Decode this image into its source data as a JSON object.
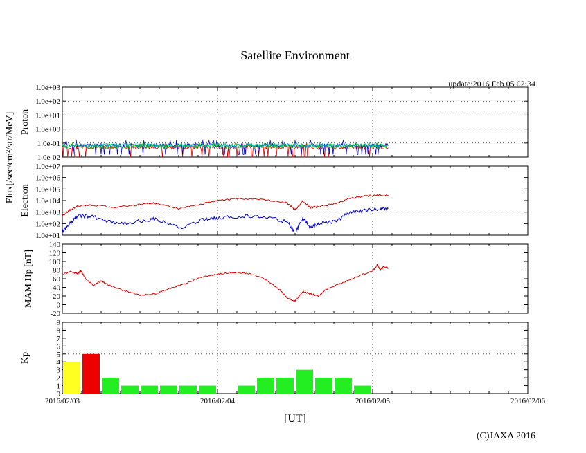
{
  "title": "Satellite Environment",
  "update_text": "update:2016 Feb 05 02:34",
  "copyright": "(C)JAXA 2016",
  "x_axis_label": "[UT]",
  "flux_label": "Flux[/sec/cm²/str/MeV]",
  "x_ticks": [
    "2016/02/03",
    "2016/02/04",
    "2016/02/05",
    "2016/02/06"
  ],
  "colors": {
    "red": "#dd0000",
    "blue": "#0000cc",
    "green": "#00cc00",
    "cyan": "#00aaaa",
    "kp_green": "#22ee22",
    "kp_yellow": "#ffff22",
    "kp_red": "#ee0000"
  },
  "chart_data": [
    {
      "type": "line",
      "name": "proton",
      "ylabel": "Proton",
      "yscale": "log",
      "ylim": [
        0.01,
        1000
      ],
      "y_ticks": [
        "1.0e-02",
        "1.0e-01",
        "1.0e+00",
        "1.0e+01",
        "1.0e+02",
        "1.0e+03"
      ],
      "x_unit": "days since 2016/02/03 00:00 UT",
      "xlim": [
        0,
        3
      ],
      "data_end_x": 2.1,
      "series": [
        {
          "color": "#dd0000",
          "level": 0.05,
          "low": 0.01,
          "high": 0.1
        },
        {
          "color": "#0000cc",
          "level": 0.07,
          "low": 0.015,
          "high": 0.15
        },
        {
          "color": "#00cc00",
          "level": 0.065,
          "low": 0.04,
          "high": 0.1
        },
        {
          "color": "#00aaaa",
          "level": 0.07,
          "low": 0.05,
          "high": 0.1
        }
      ]
    },
    {
      "type": "line",
      "name": "electron",
      "ylabel": "Electron",
      "yscale": "log",
      "ylim": [
        10,
        10000000
      ],
      "y_ticks": [
        "1.0e+01",
        "1.0e+02",
        "1.0e+03",
        "1.0e+04",
        "1.0e+05",
        "1.0e+06",
        "1.0e+07"
      ],
      "xlim": [
        0,
        3
      ],
      "series": [
        {
          "color": "#dd0000",
          "x": [
            0,
            0.05,
            0.1,
            0.2,
            0.35,
            0.5,
            0.6,
            0.75,
            0.9,
            1.0,
            1.15,
            1.3,
            1.45,
            1.5,
            1.55,
            1.6,
            1.65,
            1.75,
            1.85,
            1.95,
            2.05,
            2.1
          ],
          "y": [
            500,
            1500,
            3500,
            4000,
            2500,
            4500,
            6000,
            2000,
            5000,
            10000,
            15000,
            12000,
            6000,
            1500,
            9000,
            2500,
            3000,
            5000,
            15000,
            25000,
            30000,
            30000
          ]
        },
        {
          "color": "#0000cc",
          "x": [
            0,
            0.05,
            0.1,
            0.2,
            0.35,
            0.5,
            0.6,
            0.75,
            0.9,
            1.0,
            1.15,
            1.3,
            1.45,
            1.5,
            1.55,
            1.6,
            1.65,
            1.75,
            1.85,
            1.95,
            2.05,
            2.1
          ],
          "y": [
            20,
            100,
            500,
            400,
            100,
            150,
            250,
            40,
            200,
            300,
            450,
            400,
            150,
            15,
            300,
            50,
            100,
            150,
            800,
            1500,
            2000,
            2000
          ]
        }
      ]
    },
    {
      "type": "line",
      "name": "mam_hp",
      "ylabel": "MAM Hp [nT]",
      "ylim": [
        -20,
        140
      ],
      "y_ticks": [
        "-20",
        "0",
        "20",
        "40",
        "60",
        "80",
        "100",
        "120",
        "140"
      ],
      "xlim": [
        0,
        3
      ],
      "series": [
        {
          "color": "#dd0000",
          "x": [
            0,
            0.05,
            0.1,
            0.12,
            0.15,
            0.2,
            0.25,
            0.3,
            0.4,
            0.5,
            0.6,
            0.7,
            0.8,
            0.9,
            1.0,
            1.1,
            1.2,
            1.3,
            1.4,
            1.45,
            1.5,
            1.55,
            1.6,
            1.65,
            1.7,
            1.8,
            1.9,
            2.0,
            2.03,
            2.05,
            2.07,
            2.1
          ],
          "y": [
            70,
            76,
            72,
            78,
            60,
            45,
            55,
            45,
            32,
            22,
            25,
            38,
            50,
            65,
            70,
            75,
            72,
            60,
            35,
            15,
            8,
            30,
            25,
            20,
            35,
            50,
            65,
            78,
            92,
            80,
            88,
            85
          ]
        }
      ]
    },
    {
      "type": "bar",
      "name": "kp",
      "ylabel": "Kp",
      "ylim": [
        0,
        9
      ],
      "y_ticks": [
        "0",
        "1",
        "2",
        "3",
        "4",
        "5",
        "6",
        "7",
        "8",
        "9"
      ],
      "xlim": [
        0,
        3
      ],
      "bar_width_days": 0.125,
      "bars": [
        {
          "x": 0,
          "value": 4,
          "color": "#ffff22"
        },
        {
          "x": 0.125,
          "value": 5,
          "color": "#ee0000"
        },
        {
          "x": 0.25,
          "value": 2,
          "color": "#22ee22"
        },
        {
          "x": 0.375,
          "value": 1,
          "color": "#22ee22"
        },
        {
          "x": 0.5,
          "value": 1,
          "color": "#22ee22"
        },
        {
          "x": 0.625,
          "value": 1,
          "color": "#22ee22"
        },
        {
          "x": 0.75,
          "value": 1,
          "color": "#22ee22"
        },
        {
          "x": 0.875,
          "value": 1,
          "color": "#22ee22"
        },
        {
          "x": 1.0,
          "value": 0,
          "color": "#22ee22"
        },
        {
          "x": 1.125,
          "value": 1,
          "color": "#22ee22"
        },
        {
          "x": 1.25,
          "value": 2,
          "color": "#22ee22"
        },
        {
          "x": 1.375,
          "value": 2,
          "color": "#22ee22"
        },
        {
          "x": 1.5,
          "value": 3,
          "color": "#22ee22"
        },
        {
          "x": 1.625,
          "value": 2,
          "color": "#22ee22"
        },
        {
          "x": 1.75,
          "value": 2,
          "color": "#22ee22"
        },
        {
          "x": 1.875,
          "value": 1,
          "color": "#22ee22"
        }
      ]
    }
  ]
}
